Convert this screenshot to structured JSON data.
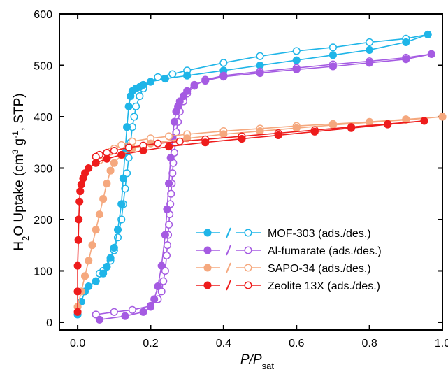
{
  "chart_data": {
    "type": "scatter",
    "xlabel": {
      "main": "P/P",
      "italic": "P/P",
      "sub": "sat"
    },
    "ylabel": {
      "pre": "H",
      "sub2": "2",
      "mid": "O Uptake (cm",
      "sup3": "3",
      "mid2": " g",
      "supm1": "-1",
      "post": ", STP)"
    },
    "xlim": [
      -0.05,
      1.0
    ],
    "ylim": [
      -15,
      600
    ],
    "xticks": [
      0.0,
      0.2,
      0.4,
      0.6,
      0.8,
      1.0
    ],
    "xtick_labels": [
      "0.0",
      "0.2",
      "0.4",
      "0.6",
      "0.8",
      "1.0"
    ],
    "yticks": [
      0,
      100,
      200,
      300,
      400,
      500,
      600
    ],
    "ytick_labels": [
      "0",
      "100",
      "200",
      "300",
      "400",
      "500",
      "600"
    ],
    "grid": false,
    "legend_position": "lower-right",
    "series": [
      {
        "name": "MOF-303 (ads./des.)",
        "color": "#1fb5e8",
        "ads": {
          "x": [
            0.0,
            0.01,
            0.02,
            0.03,
            0.05,
            0.07,
            0.08,
            0.09,
            0.1,
            0.11,
            0.12,
            0.125,
            0.13,
            0.135,
            0.14,
            0.145,
            0.15,
            0.16,
            0.17,
            0.18,
            0.2,
            0.24,
            0.3,
            0.4,
            0.5,
            0.6,
            0.7,
            0.8,
            0.9,
            0.96
          ],
          "y": [
            15,
            40,
            60,
            70,
            80,
            95,
            108,
            125,
            145,
            180,
            230,
            280,
            330,
            380,
            420,
            440,
            450,
            455,
            458,
            462,
            468,
            474,
            480,
            490,
            500,
            510,
            520,
            530,
            545,
            560
          ]
        },
        "des": {
          "x": [
            0.96,
            0.9,
            0.8,
            0.7,
            0.6,
            0.5,
            0.4,
            0.3,
            0.26,
            0.22,
            0.2,
            0.18,
            0.17,
            0.16,
            0.155,
            0.15,
            0.145,
            0.14,
            0.135,
            0.13,
            0.125,
            0.12,
            0.11,
            0.1,
            0.09,
            0.08,
            0.07,
            0.06
          ],
          "y": [
            560,
            552,
            545,
            535,
            528,
            518,
            505,
            490,
            483,
            477,
            468,
            455,
            440,
            420,
            400,
            380,
            350,
            320,
            290,
            260,
            230,
            200,
            165,
            140,
            120,
            108,
            100,
            95
          ]
        }
      },
      {
        "name": "Al-fumarate (ads./des.)",
        "color": "#a55be2",
        "ads": {
          "x": [
            0.06,
            0.13,
            0.18,
            0.2,
            0.21,
            0.22,
            0.23,
            0.24,
            0.245,
            0.25,
            0.255,
            0.26,
            0.265,
            0.27,
            0.275,
            0.28,
            0.29,
            0.3,
            0.32,
            0.35,
            0.4,
            0.5,
            0.6,
            0.7,
            0.8,
            0.9,
            0.97
          ],
          "y": [
            5,
            12,
            20,
            30,
            45,
            70,
            110,
            170,
            220,
            270,
            320,
            360,
            390,
            410,
            420,
            430,
            440,
            450,
            462,
            470,
            478,
            485,
            492,
            498,
            505,
            512,
            522
          ]
        },
        "des": {
          "x": [
            0.97,
            0.9,
            0.8,
            0.7,
            0.6,
            0.5,
            0.4,
            0.35,
            0.32,
            0.3,
            0.29,
            0.28,
            0.275,
            0.27,
            0.268,
            0.265,
            0.262,
            0.26,
            0.258,
            0.256,
            0.254,
            0.252,
            0.25,
            0.248,
            0.246,
            0.244,
            0.24,
            0.235,
            0.23,
            0.22,
            0.2,
            0.15,
            0.1,
            0.05
          ],
          "y": [
            522,
            515,
            508,
            502,
            495,
            488,
            480,
            472,
            460,
            445,
            430,
            410,
            390,
            370,
            350,
            330,
            310,
            290,
            270,
            250,
            230,
            210,
            190,
            170,
            150,
            130,
            100,
            80,
            60,
            45,
            32,
            24,
            20,
            15
          ]
        }
      },
      {
        "name": "SAPO-34 (ads./des.)",
        "color": "#f5a87e",
        "ads": {
          "x": [
            0.0,
            0.01,
            0.02,
            0.03,
            0.04,
            0.05,
            0.06,
            0.07,
            0.08,
            0.09,
            0.1,
            0.12,
            0.15,
            0.2,
            0.3,
            0.4,
            0.5,
            0.6,
            0.7,
            0.8,
            0.9,
            1.0
          ],
          "y": [
            30,
            60,
            90,
            120,
            150,
            180,
            210,
            240,
            270,
            295,
            310,
            325,
            338,
            348,
            358,
            366,
            372,
            378,
            384,
            389,
            394,
            400
          ],
          "open": false
        },
        "des": {
          "x": [
            1.0,
            0.9,
            0.8,
            0.7,
            0.6,
            0.5,
            0.4,
            0.3,
            0.25,
            0.2,
            0.15,
            0.12,
            0.1,
            0.09,
            0.08,
            0.07,
            0.06,
            0.05
          ],
          "y": [
            400,
            395,
            390,
            386,
            382,
            377,
            372,
            366,
            362,
            358,
            352,
            345,
            338,
            332,
            326,
            320,
            315,
            310
          ]
        }
      },
      {
        "name": "Zeolite 13X (ads./des.)",
        "color": "#ee1c1c",
        "ads": {
          "x": [
            0.0,
            0.0,
            0.0,
            0.002,
            0.003,
            0.005,
            0.007,
            0.01,
            0.015,
            0.02,
            0.03,
            0.05,
            0.08,
            0.12,
            0.18,
            0.25,
            0.35,
            0.45,
            0.55,
            0.65,
            0.75,
            0.85,
            0.95
          ],
          "y": [
            20,
            60,
            110,
            160,
            200,
            235,
            255,
            268,
            280,
            290,
            300,
            310,
            318,
            326,
            334,
            342,
            350,
            357,
            364,
            371,
            378,
            385,
            392
          ]
        },
        "des": {
          "x": [
            0.95,
            0.85,
            0.75,
            0.65,
            0.55,
            0.45,
            0.35,
            0.28,
            0.22,
            0.18,
            0.14,
            0.1,
            0.08,
            0.06,
            0.05
          ],
          "y": [
            392,
            386,
            380,
            374,
            368,
            362,
            356,
            352,
            348,
            344,
            340,
            334,
            330,
            326,
            322
          ]
        }
      }
    ]
  }
}
